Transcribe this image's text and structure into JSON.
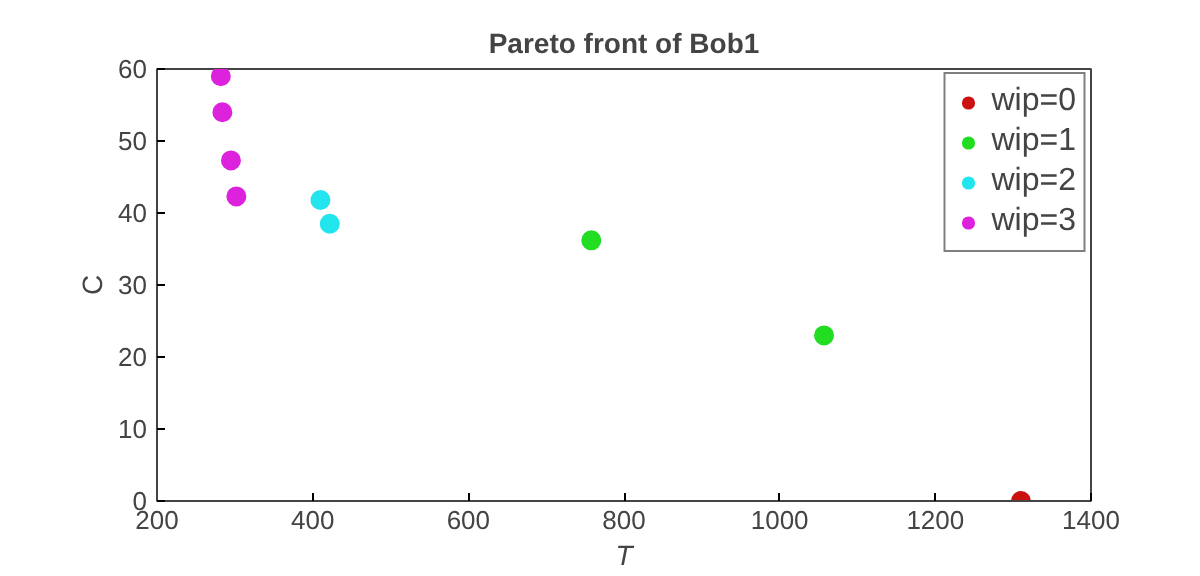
{
  "chart_data": {
    "type": "scatter",
    "title": "Pareto front of Bob1",
    "xlabel": "T",
    "ylabel": "C",
    "xlim": [
      200,
      1400
    ],
    "xticks": [
      200,
      400,
      600,
      800,
      1000,
      1200,
      1400
    ],
    "ylim": [
      0,
      60
    ],
    "yticks": [
      0,
      10,
      20,
      30,
      40,
      50,
      60
    ],
    "grid": false,
    "legend": "top right",
    "marker": "circle",
    "series": [
      {
        "name": "wip=0",
        "color": "#cc1111",
        "x": [
          1310
        ],
        "values": [
          0
        ]
      },
      {
        "name": "wip=1",
        "color": "#22dd22",
        "x": [
          758,
          1057
        ],
        "values": [
          36.2,
          23
        ]
      },
      {
        "name": "wip=2",
        "color": "#22e5ee",
        "x": [
          410,
          422
        ],
        "values": [
          41.8,
          38.5
        ]
      },
      {
        "name": "wip=3",
        "color": "#dd22dd",
        "x": [
          282,
          284,
          295,
          302
        ],
        "values": [
          59,
          54,
          47.3,
          42.3
        ]
      }
    ]
  }
}
